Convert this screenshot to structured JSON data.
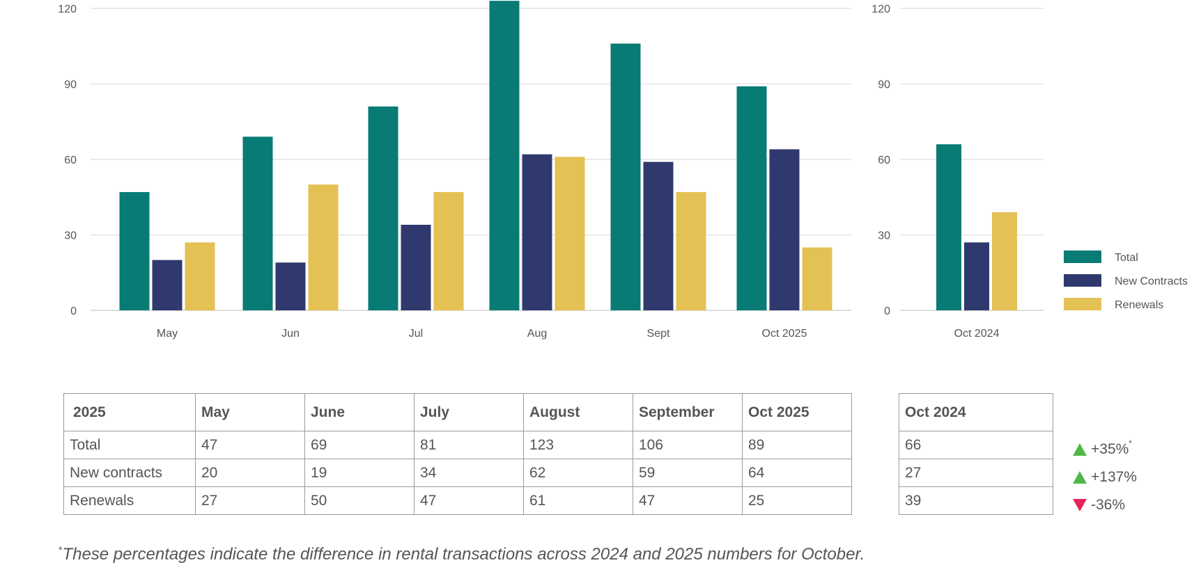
{
  "chart_data": [
    {
      "type": "bar",
      "categories": [
        "May",
        "Jun",
        "Jul",
        "Aug",
        "Sept",
        "Oct 2025"
      ],
      "series": [
        {
          "name": "Total",
          "values": [
            47,
            69,
            81,
            123,
            106,
            89
          ],
          "color": "#087b75"
        },
        {
          "name": "New Contracts",
          "values": [
            20,
            19,
            34,
            62,
            59,
            64
          ],
          "color": "#30396d"
        },
        {
          "name": "Renewals",
          "values": [
            27,
            50,
            47,
            61,
            47,
            25
          ],
          "color": "#e4c155"
        }
      ],
      "ylim": [
        0,
        123
      ],
      "yticks": [
        0,
        30,
        60,
        90,
        120
      ],
      "grid": true
    },
    {
      "type": "bar",
      "categories": [
        "Oct 2024"
      ],
      "series": [
        {
          "name": "Total",
          "values": [
            66
          ],
          "color": "#087b75"
        },
        {
          "name": "New Contracts",
          "values": [
            27
          ],
          "color": "#30396d"
        },
        {
          "name": "Renewals",
          "values": [
            39
          ],
          "color": "#e4c155"
        }
      ],
      "ylim": [
        0,
        123
      ],
      "yticks": [
        0,
        30,
        60,
        90,
        120
      ],
      "grid": true,
      "legend_position": "right"
    }
  ],
  "legend": [
    {
      "label": "Total",
      "color": "#087b75"
    },
    {
      "label": "New Contracts",
      "color": "#30396d"
    },
    {
      "label": "Renewals",
      "color": "#e4c155"
    }
  ],
  "table_2025": {
    "header": [
      "2025",
      "May",
      "June",
      "July",
      "August",
      "September",
      "Oct 2025"
    ],
    "rows": [
      [
        "Total",
        "47",
        "69",
        "81",
        "123",
        "106",
        "89"
      ],
      [
        "New contracts",
        "20",
        "19",
        "34",
        "62",
        "59",
        "64"
      ],
      [
        "Renewals",
        "27",
        "50",
        "47",
        "61",
        "47",
        "25"
      ]
    ]
  },
  "table_2024": {
    "header": "Oct 2024",
    "rows": [
      "66",
      "27",
      "39"
    ]
  },
  "changes": [
    {
      "direction": "up",
      "text": "+35%",
      "marker": "*",
      "color": "#4fb848"
    },
    {
      "direction": "up",
      "text": "+137%",
      "marker": "",
      "color": "#4fb848"
    },
    {
      "direction": "down",
      "text": "-36%",
      "marker": "",
      "color": "#e6245a"
    }
  ],
  "footnote": {
    "marker": "*",
    "text": "These percentages indicate the difference in rental transactions across 2024 and 2025 numbers for October."
  }
}
